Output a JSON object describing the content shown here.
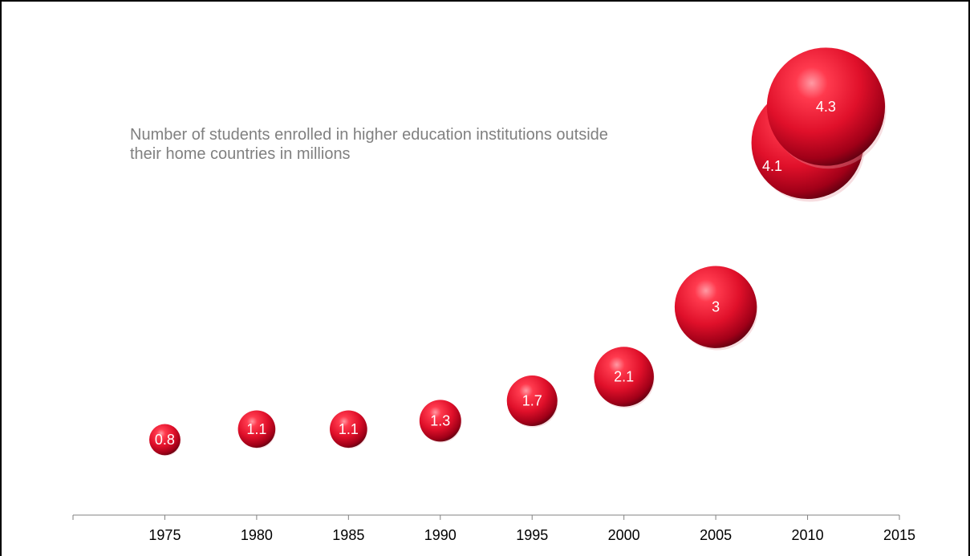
{
  "chart_data": {
    "type": "bubble",
    "title": "Number of students enrolled in higher education institutions outside their home countries in millions",
    "xlabel": "",
    "ylabel": "",
    "xlim": [
      1970,
      2015
    ],
    "x_ticks": [
      1975,
      1980,
      1985,
      1990,
      1995,
      2000,
      2005,
      2010,
      2015
    ],
    "grid": false,
    "legend": "none",
    "colors": {
      "bubble_base": "#e0102a",
      "bubble_highlight": "#ff8a94",
      "bubble_shadow": "#5a0010",
      "label": "#ffffff",
      "axis": "#808080"
    },
    "series": [
      {
        "points": [
          {
            "x": 1975,
            "value": 0.8,
            "label": "0.8"
          },
          {
            "x": 1980,
            "value": 1.1,
            "label": "1.1"
          },
          {
            "x": 1985,
            "value": 1.1,
            "label": "1.1"
          },
          {
            "x": 1990,
            "value": 1.3,
            "label": "1.3"
          },
          {
            "x": 1995,
            "value": 1.7,
            "label": "1.7"
          },
          {
            "x": 2000,
            "value": 2.1,
            "label": "2.1"
          },
          {
            "x": 2005,
            "value": 3.0,
            "label": "3"
          },
          {
            "x": 2010,
            "value": 4.1,
            "label": "4.1"
          },
          {
            "x": 2011,
            "value": 4.3,
            "label": "4.3"
          }
        ]
      }
    ]
  }
}
